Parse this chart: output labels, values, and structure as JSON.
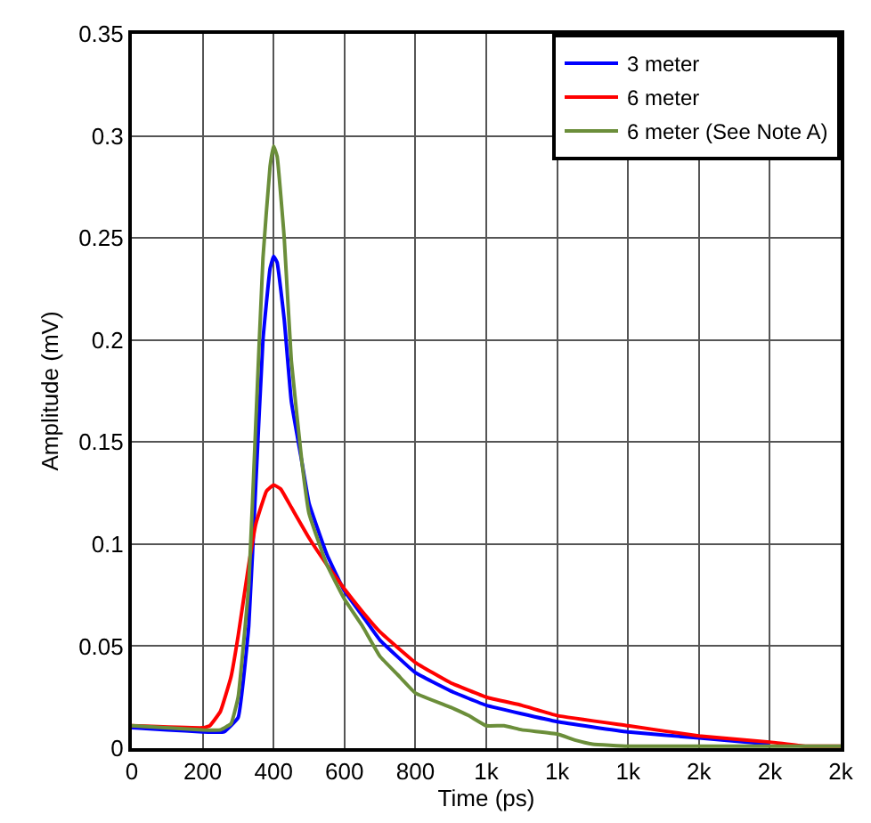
{
  "chart_data": {
    "type": "line",
    "xlabel": "Time (ps)",
    "ylabel": "Amplitude (mV)",
    "xlim": [
      0,
      2000
    ],
    "ylim": [
      0,
      0.35
    ],
    "xticks": [
      0,
      200,
      400,
      600,
      800,
      {
        "value": 1000,
        "label": "1k"
      },
      {
        "value": 1200,
        "label": "1k"
      },
      {
        "value": 1400,
        "label": "1k"
      },
      {
        "value": 1600,
        "label": "2k"
      },
      {
        "value": 1800,
        "label": "2k"
      },
      {
        "value": 2000,
        "label": "2k"
      }
    ],
    "yticks": [
      0,
      0.05,
      0.1,
      0.15,
      0.2,
      0.25,
      0.3,
      0.35
    ],
    "grid": true,
    "legend": "top right",
    "marker": "none",
    "line_style": "solid",
    "series": [
      {
        "name": "3 meter",
        "color": "#0000ff",
        "x": [
          0,
          100,
          200,
          260,
          300,
          330,
          350,
          370,
          390,
          400,
          410,
          430,
          450,
          480,
          500,
          550,
          600,
          650,
          700,
          800,
          900,
          1000,
          1200,
          1400,
          1600,
          1800
        ],
        "values": [
          0.01,
          0.009,
          0.008,
          0.008,
          0.015,
          0.06,
          0.13,
          0.2,
          0.235,
          0.241,
          0.238,
          0.21,
          0.17,
          0.14,
          0.12,
          0.095,
          0.077,
          0.065,
          0.053,
          0.037,
          0.028,
          0.021,
          0.013,
          0.008,
          0.005,
          0.002
        ]
      },
      {
        "name": "6 meter",
        "color": "#ff0000",
        "x": [
          0,
          200,
          220,
          250,
          280,
          300,
          330,
          350,
          380,
          400,
          420,
          450,
          500,
          550,
          600,
          650,
          700,
          800,
          900,
          1000,
          1100,
          1200,
          1400,
          1600,
          1800,
          1900,
          2000
        ],
        "values": [
          0.011,
          0.01,
          0.011,
          0.018,
          0.035,
          0.055,
          0.09,
          0.11,
          0.126,
          0.129,
          0.127,
          0.118,
          0.103,
          0.09,
          0.078,
          0.067,
          0.057,
          0.042,
          0.032,
          0.025,
          0.021,
          0.016,
          0.011,
          0.006,
          0.003,
          0.001,
          0.001
        ]
      },
      {
        "name": "6 meter (See Note A)",
        "color": "#6b8e3a",
        "x": [
          0,
          200,
          250,
          280,
          300,
          330,
          350,
          370,
          390,
          400,
          410,
          430,
          450,
          480,
          500,
          550,
          600,
          650,
          700,
          750,
          800,
          900,
          950,
          1000,
          1050,
          1100,
          1200,
          1250,
          1300,
          1400,
          1600,
          2000
        ],
        "values": [
          0.011,
          0.009,
          0.009,
          0.012,
          0.025,
          0.08,
          0.16,
          0.24,
          0.285,
          0.295,
          0.29,
          0.25,
          0.19,
          0.14,
          0.115,
          0.09,
          0.073,
          0.06,
          0.045,
          0.036,
          0.027,
          0.02,
          0.016,
          0.011,
          0.011,
          0.009,
          0.007,
          0.004,
          0.002,
          0.001,
          0.001,
          0.001
        ]
      }
    ]
  }
}
